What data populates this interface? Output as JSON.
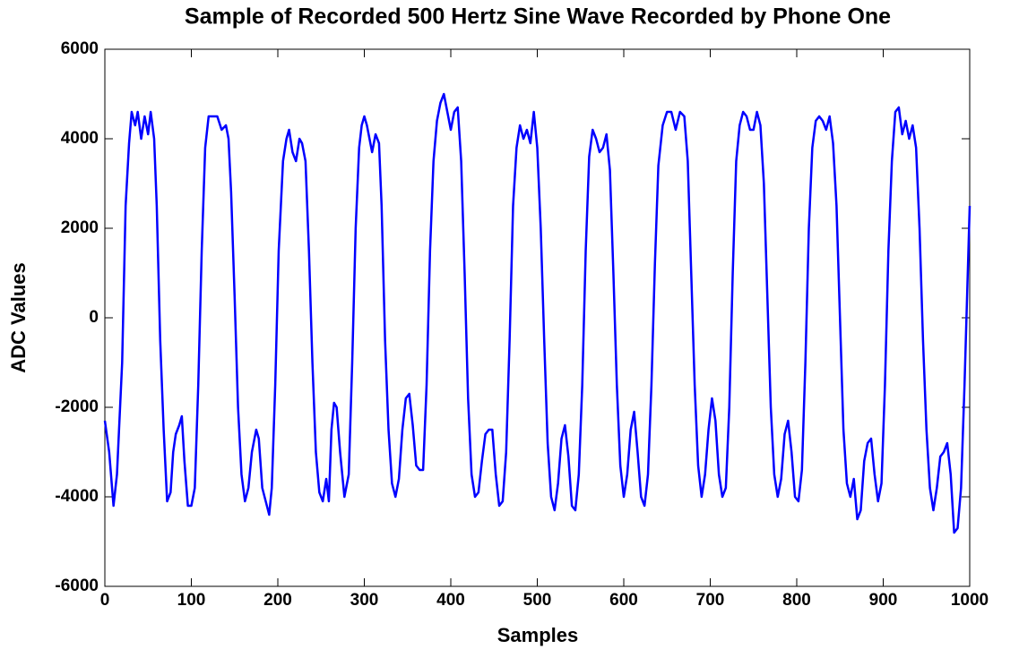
{
  "chart_data": {
    "type": "line",
    "title": "Sample of Recorded 500 Hertz Sine Wave Recorded by Phone One",
    "x_label": "Samples",
    "y_label": "ADC Values",
    "color": "#0000ff",
    "xlim": [
      0,
      1000
    ],
    "xticks": [
      0,
      100,
      200,
      300,
      400,
      500,
      600,
      700,
      800,
      900,
      1000
    ],
    "ylim": [
      -6000,
      6000
    ],
    "yticks": [
      -6000,
      -4000,
      -2000,
      0,
      2000,
      4000,
      6000
    ],
    "grid": false,
    "x": [
      0,
      5,
      10,
      14,
      20,
      24,
      28,
      31,
      35,
      38,
      42,
      46,
      50,
      53,
      57,
      60,
      64,
      68,
      72,
      76,
      79,
      82,
      86,
      89,
      92,
      96,
      100,
      104,
      108,
      112,
      116,
      120,
      125,
      130,
      135,
      140,
      143,
      146,
      150,
      154,
      158,
      162,
      166,
      170,
      175,
      178,
      182,
      186,
      190,
      193,
      197,
      201,
      206,
      210,
      213,
      217,
      221,
      225,
      228,
      232,
      236,
      240,
      244,
      248,
      252,
      256,
      259,
      262,
      265,
      268,
      272,
      277,
      282,
      286,
      290,
      294,
      297,
      300,
      303,
      306,
      309,
      313,
      317,
      320,
      324,
      328,
      332,
      336,
      340,
      344,
      348,
      352,
      356,
      360,
      364,
      368,
      372,
      376,
      380,
      384,
      388,
      392,
      396,
      400,
      404,
      408,
      412,
      416,
      420,
      424,
      428,
      432,
      436,
      440,
      444,
      448,
      452,
      456,
      460,
      464,
      468,
      472,
      476,
      480,
      484,
      488,
      492,
      496,
      500,
      504,
      508,
      512,
      516,
      520,
      524,
      528,
      532,
      536,
      540,
      544,
      548,
      552,
      556,
      560,
      564,
      568,
      572,
      576,
      580,
      584,
      588,
      592,
      596,
      600,
      604,
      608,
      612,
      616,
      620,
      624,
      628,
      632,
      636,
      640,
      645,
      650,
      655,
      660,
      665,
      670,
      674,
      678,
      682,
      686,
      690,
      694,
      698,
      702,
      706,
      710,
      714,
      718,
      722,
      726,
      730,
      734,
      738,
      742,
      746,
      750,
      754,
      758,
      762,
      766,
      770,
      774,
      778,
      782,
      786,
      790,
      794,
      798,
      802,
      806,
      810,
      814,
      818,
      822,
      826,
      830,
      834,
      838,
      842,
      846,
      850,
      854,
      858,
      862,
      866,
      870,
      874,
      878,
      882,
      886,
      890,
      894,
      898,
      902,
      906,
      910,
      914,
      918,
      922,
      926,
      930,
      934,
      938,
      942,
      946,
      950,
      954,
      958,
      962,
      966,
      970,
      974,
      978,
      982,
      986,
      990,
      994,
      997,
      1000
    ],
    "values": [
      -2300,
      -3000,
      -4200,
      -3500,
      -1000,
      2500,
      3900,
      4600,
      4300,
      4600,
      4000,
      4500,
      4100,
      4600,
      4000,
      2500,
      -500,
      -2500,
      -4100,
      -3900,
      -3000,
      -2600,
      -2400,
      -2200,
      -3200,
      -4200,
      -4200,
      -3800,
      -1500,
      1500,
      3800,
      4500,
      4500,
      4500,
      4200,
      4300,
      4000,
      2800,
      500,
      -2000,
      -3500,
      -4100,
      -3800,
      -3000,
      -2500,
      -2700,
      -3800,
      -4100,
      -4400,
      -3800,
      -1500,
      1500,
      3500,
      4000,
      4200,
      3700,
      3500,
      4000,
      3900,
      3500,
      1500,
      -1000,
      -3000,
      -3900,
      -4100,
      -3600,
      -4100,
      -2500,
      -1900,
      -2000,
      -3000,
      -4000,
      -3500,
      -1000,
      2000,
      3800,
      4300,
      4500,
      4300,
      4000,
      3700,
      4100,
      3900,
      2500,
      -500,
      -2500,
      -3700,
      -4000,
      -3600,
      -2500,
      -1800,
      -1700,
      -2400,
      -3300,
      -3400,
      -3400,
      -1500,
      1500,
      3500,
      4400,
      4800,
      5000,
      4600,
      4200,
      4600,
      4700,
      3500,
      1000,
      -1800,
      -3500,
      -4000,
      -3900,
      -3200,
      -2600,
      -2500,
      -2500,
      -3500,
      -4200,
      -4100,
      -3000,
      -500,
      2500,
      3800,
      4300,
      4000,
      4200,
      3900,
      4600,
      3800,
      2000,
      -500,
      -2800,
      -4000,
      -4300,
      -3700,
      -2700,
      -2400,
      -3100,
      -4200,
      -4300,
      -3500,
      -1500,
      1500,
      3600,
      4200,
      4000,
      3700,
      3800,
      4100,
      3300,
      1000,
      -1500,
      -3300,
      -4000,
      -3500,
      -2500,
      -2100,
      -3000,
      -4000,
      -4200,
      -3500,
      -1500,
      1200,
      3400,
      4300,
      4600,
      4600,
      4200,
      4600,
      4500,
      3500,
      1000,
      -1500,
      -3300,
      -4000,
      -3500,
      -2500,
      -1800,
      -2300,
      -3500,
      -4000,
      -3800,
      -2000,
      1000,
      3500,
      4300,
      4600,
      4500,
      4200,
      4200,
      4600,
      4300,
      3000,
      500,
      -2000,
      -3500,
      -4000,
      -3600,
      -2600,
      -2300,
      -3000,
      -4000,
      -4100,
      -3400,
      -1000,
      2000,
      3800,
      4400,
      4500,
      4400,
      4200,
      4500,
      3900,
      2500,
      0,
      -2500,
      -3700,
      -4000,
      -3600,
      -4500,
      -4300,
      -3200,
      -2800,
      -2700,
      -3500,
      -4100,
      -3700,
      -1500,
      1500,
      3500,
      4600,
      4700,
      4100,
      4400,
      4000,
      4300,
      3800,
      2000,
      -500,
      -2500,
      -3800,
      -4300,
      -3800,
      -3100,
      -3000,
      -2800,
      -3500,
      -4800,
      -4700,
      -3800,
      -1500,
      500,
      2500
    ]
  }
}
